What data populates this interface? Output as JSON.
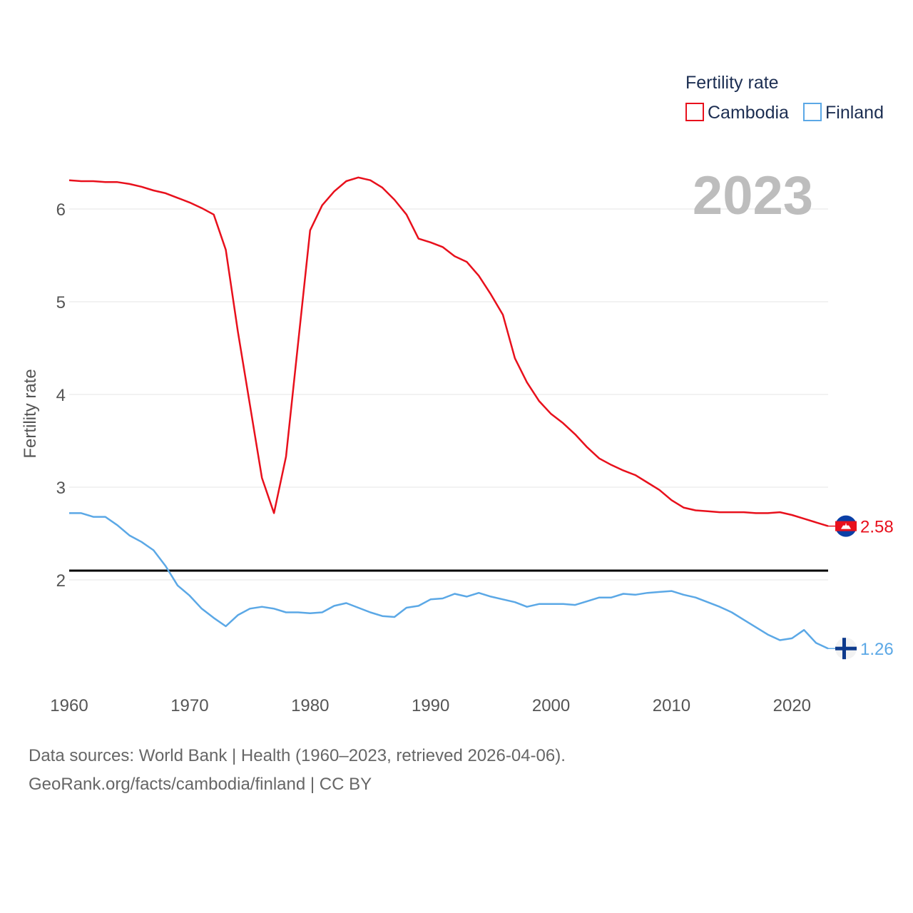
{
  "chart_data": {
    "type": "line",
    "title": "2023",
    "xlabel": "",
    "ylabel": "Fertility rate",
    "xlim": [
      1960,
      2023
    ],
    "ylim": [
      1.0,
      6.55
    ],
    "yticks": [
      2,
      3,
      4,
      5,
      6
    ],
    "xticks": [
      1960,
      1970,
      1980,
      1990,
      2000,
      2010,
      2020
    ],
    "legend_title": "Fertility rate",
    "legend_position": "top-right",
    "reference_line": {
      "value": 2.1,
      "color": "#000000"
    },
    "x": [
      1960,
      1961,
      1962,
      1963,
      1964,
      1965,
      1966,
      1967,
      1968,
      1969,
      1970,
      1971,
      1972,
      1973,
      1974,
      1975,
      1976,
      1977,
      1978,
      1979,
      1980,
      1981,
      1982,
      1983,
      1984,
      1985,
      1986,
      1987,
      1988,
      1989,
      1990,
      1991,
      1992,
      1993,
      1994,
      1995,
      1996,
      1997,
      1998,
      1999,
      2000,
      2001,
      2002,
      2003,
      2004,
      2005,
      2006,
      2007,
      2008,
      2009,
      2010,
      2011,
      2012,
      2013,
      2014,
      2015,
      2016,
      2017,
      2018,
      2019,
      2020,
      2021,
      2022,
      2023
    ],
    "series": [
      {
        "name": "Cambodia",
        "color": "#e8101c",
        "flag": "cambodia-flag-icon",
        "end_label": "2.58",
        "values": [
          6.31,
          6.3,
          6.3,
          6.29,
          6.29,
          6.27,
          6.24,
          6.2,
          6.17,
          6.12,
          6.07,
          6.01,
          5.94,
          5.56,
          4.68,
          3.89,
          3.1,
          2.72,
          3.33,
          4.55,
          5.77,
          6.04,
          6.19,
          6.3,
          6.34,
          6.31,
          6.23,
          6.1,
          5.94,
          5.68,
          5.64,
          5.59,
          5.49,
          5.43,
          5.28,
          5.08,
          4.86,
          4.39,
          4.13,
          3.93,
          3.79,
          3.69,
          3.57,
          3.43,
          3.31,
          3.24,
          3.18,
          3.13,
          3.05,
          2.97,
          2.86,
          2.78,
          2.75,
          2.74,
          2.73,
          2.73,
          2.73,
          2.72,
          2.72,
          2.73,
          2.7,
          2.66,
          2.62,
          2.58
        ]
      },
      {
        "name": "Finland",
        "color": "#5ba8e6",
        "flag": "finland-flag-icon",
        "end_label": "1.26",
        "values": [
          2.72,
          2.72,
          2.68,
          2.68,
          2.59,
          2.48,
          2.41,
          2.32,
          2.15,
          1.94,
          1.83,
          1.69,
          1.59,
          1.5,
          1.62,
          1.69,
          1.71,
          1.69,
          1.65,
          1.65,
          1.64,
          1.65,
          1.72,
          1.75,
          1.7,
          1.65,
          1.61,
          1.6,
          1.7,
          1.72,
          1.79,
          1.8,
          1.85,
          1.82,
          1.86,
          1.82,
          1.79,
          1.76,
          1.71,
          1.74,
          1.74,
          1.74,
          1.73,
          1.77,
          1.81,
          1.81,
          1.85,
          1.84,
          1.86,
          1.87,
          1.88,
          1.84,
          1.81,
          1.76,
          1.71,
          1.65,
          1.57,
          1.49,
          1.41,
          1.35,
          1.37,
          1.46,
          1.32,
          1.26
        ]
      }
    ]
  },
  "footer": {
    "line1": "Data sources: World Bank | Health (1960–2023, retrieved 2026-04-06).",
    "line2": "GeoRank.org/facts/cambodia/finland | CC BY"
  }
}
